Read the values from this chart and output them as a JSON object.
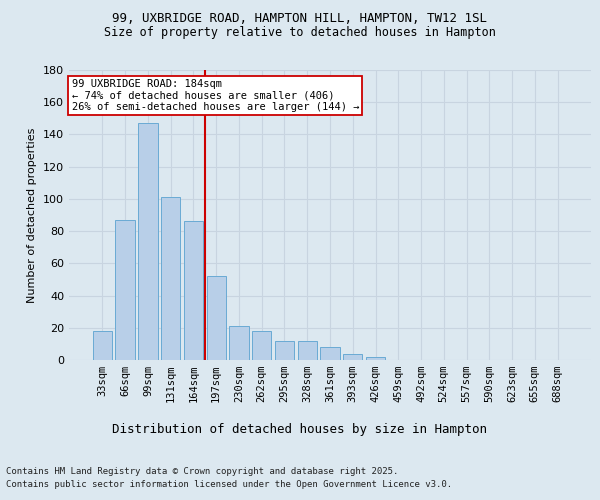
{
  "title_line1": "99, UXBRIDGE ROAD, HAMPTON HILL, HAMPTON, TW12 1SL",
  "title_line2": "Size of property relative to detached houses in Hampton",
  "xlabel": "Distribution of detached houses by size in Hampton",
  "ylabel": "Number of detached properties",
  "categories": [
    "33sqm",
    "66sqm",
    "99sqm",
    "131sqm",
    "164sqm",
    "197sqm",
    "230sqm",
    "262sqm",
    "295sqm",
    "328sqm",
    "361sqm",
    "393sqm",
    "426sqm",
    "459sqm",
    "492sqm",
    "524sqm",
    "557sqm",
    "590sqm",
    "623sqm",
    "655sqm",
    "688sqm"
  ],
  "values": [
    18,
    87,
    147,
    101,
    86,
    52,
    21,
    18,
    12,
    12,
    8,
    4,
    2,
    0,
    0,
    0,
    0,
    0,
    0,
    0,
    0
  ],
  "bar_color": "#b8cfe8",
  "bar_edge_color": "#6aaad4",
  "vline_x": 4.5,
  "vline_color": "#cc0000",
  "annotation_text": "99 UXBRIDGE ROAD: 184sqm\n← 74% of detached houses are smaller (406)\n26% of semi-detached houses are larger (144) →",
  "annotation_box_color": "#ffffff",
  "annotation_box_edge": "#cc0000",
  "ylim": [
    0,
    180
  ],
  "yticks": [
    0,
    20,
    40,
    60,
    80,
    100,
    120,
    140,
    160,
    180
  ],
  "grid_color": "#c8d4e0",
  "bg_color": "#dce8f0",
  "footer_line1": "Contains HM Land Registry data © Crown copyright and database right 2025.",
  "footer_line2": "Contains public sector information licensed under the Open Government Licence v3.0."
}
